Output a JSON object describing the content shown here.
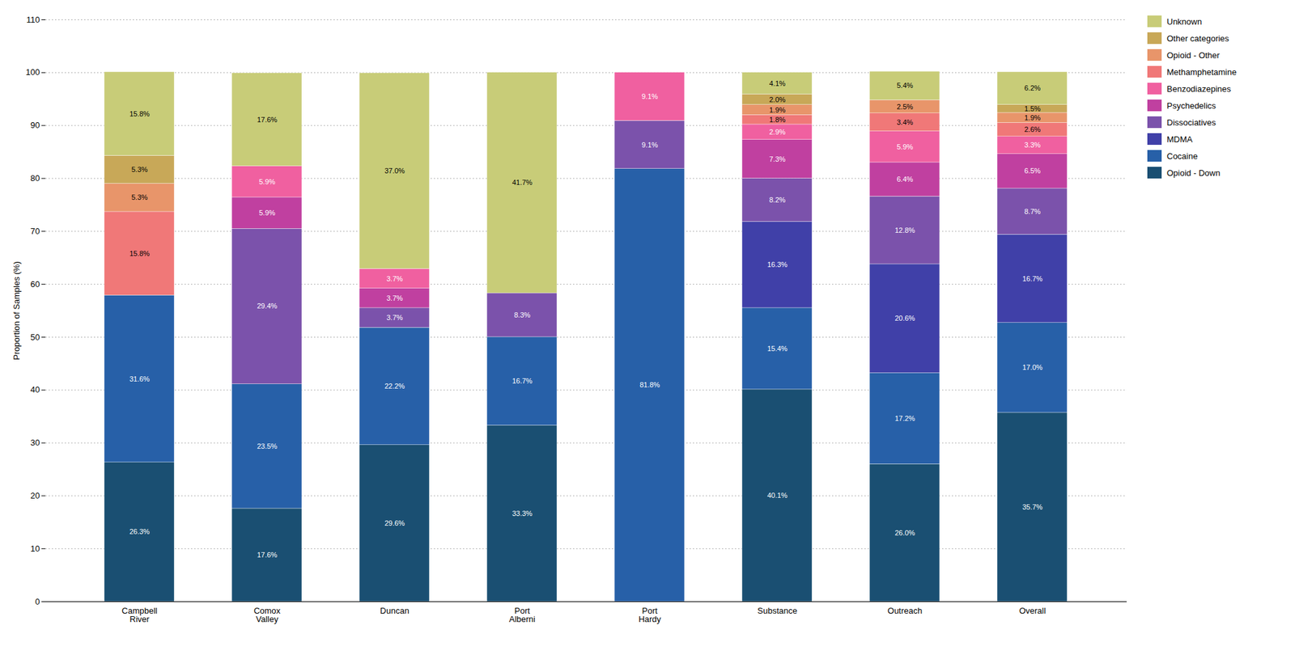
{
  "chart_data": {
    "type": "bar",
    "stacked": true,
    "categories": [
      "Campbell\nRiver",
      "Comox\nValley",
      "Duncan",
      "Port\nAlberni",
      "Port\nHardy",
      "Substance",
      "Outreach",
      "Overall"
    ],
    "ylabel": "Proportion of Samples (%)",
    "ylim": [
      0,
      110
    ],
    "yticks": [
      0,
      10,
      20,
      30,
      40,
      50,
      60,
      70,
      80,
      90,
      100,
      110
    ],
    "grid": true,
    "legend": "right",
    "data_labels": true,
    "series": [
      {
        "name": "Opioid - Down",
        "color": "#1a4f72",
        "values": [
          26.3,
          17.6,
          29.6,
          33.3,
          0.0,
          40.1,
          26.0,
          35.7
        ],
        "value_labels": [
          "26.3%",
          "17.6%",
          "29.6%",
          "33.3%",
          null,
          "40.1%",
          "26.0%",
          "35.7%"
        ]
      },
      {
        "name": "Cocaine",
        "color": "#2760a8",
        "values": [
          31.6,
          23.5,
          22.2,
          16.7,
          81.8,
          15.4,
          17.2,
          17.0
        ],
        "value_labels": [
          "31.6%",
          "23.5%",
          "22.2%",
          "16.7%",
          "81.8%",
          "15.4%",
          "17.2%",
          "17.0%"
        ]
      },
      {
        "name": "MDMA",
        "color": "#4040a8",
        "values": [
          0.0,
          0.0,
          0.0,
          0.0,
          0.0,
          16.3,
          20.6,
          16.7
        ],
        "value_labels": [
          null,
          null,
          null,
          null,
          null,
          "16.3%",
          "20.6%",
          "16.7%"
        ]
      },
      {
        "name": "Dissociatives",
        "color": "#7b52ab",
        "values": [
          0.0,
          29.4,
          3.7,
          8.3,
          9.1,
          8.2,
          12.8,
          8.7
        ],
        "value_labels": [
          null,
          "29.4%",
          "3.7%",
          "8.3%",
          "9.1%",
          "8.2%",
          "12.8%",
          "8.7%"
        ]
      },
      {
        "name": "Psychedelics",
        "color": "#c040a0",
        "values": [
          0.0,
          5.9,
          3.7,
          0.0,
          0.0,
          7.3,
          6.4,
          6.5
        ],
        "value_labels": [
          null,
          "5.9%",
          "3.7%",
          null,
          null,
          "7.3%",
          "6.4%",
          "6.5%"
        ]
      },
      {
        "name": "Benzodiazepines",
        "color": "#f060a0",
        "values": [
          0.0,
          5.9,
          3.7,
          0.0,
          9.1,
          2.9,
          5.9,
          3.3
        ],
        "value_labels": [
          null,
          "5.9%",
          "3.7%",
          null,
          "9.1%",
          "2.9%",
          "5.9%",
          "3.3%"
        ]
      },
      {
        "name": "Methamphetamine",
        "color": "#f07878",
        "values": [
          15.8,
          0.0,
          0.0,
          0.0,
          0.0,
          1.8,
          3.4,
          2.6
        ],
        "value_labels": [
          "15.8%",
          null,
          null,
          null,
          null,
          "1.8%",
          "3.4%",
          "2.6%"
        ]
      },
      {
        "name": "Opioid - Other",
        "color": "#e8956a",
        "values": [
          5.3,
          0.0,
          0.0,
          0.0,
          0.0,
          1.9,
          2.5,
          1.9
        ],
        "value_labels": [
          "5.3%",
          null,
          null,
          null,
          null,
          "1.9%",
          "2.5%",
          "1.9%"
        ]
      },
      {
        "name": "Other categories",
        "color": "#c8a858",
        "values": [
          5.3,
          0.0,
          0.0,
          0.0,
          0.0,
          2.0,
          0.0,
          1.5
        ],
        "value_labels": [
          "5.3%",
          null,
          null,
          null,
          null,
          "2.0%",
          null,
          "1.5%"
        ]
      },
      {
        "name": "Unknown",
        "color": "#c8cc78",
        "values": [
          15.8,
          17.6,
          37.0,
          41.7,
          0.0,
          4.1,
          5.4,
          6.2
        ],
        "value_labels": [
          "15.8%",
          "17.6%",
          "37.0%",
          "41.7%",
          null,
          "4.1%",
          "5.4%",
          "6.2%"
        ]
      }
    ]
  }
}
